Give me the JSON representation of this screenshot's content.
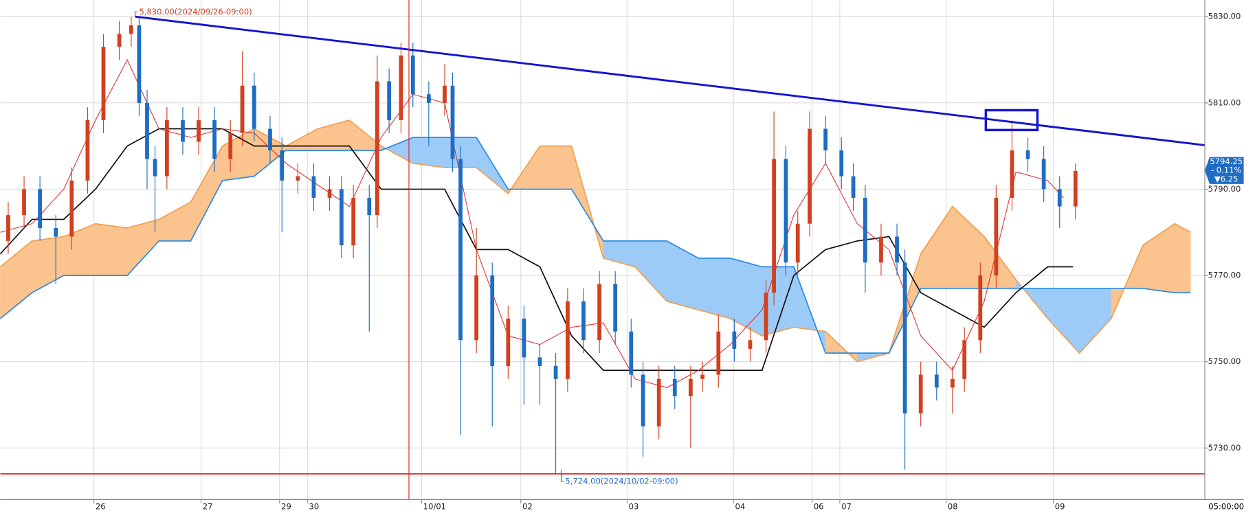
{
  "chart_data": {
    "type": "candlestick",
    "x": [
      0.5,
      1.5,
      2.5,
      3.5,
      4.5,
      5.5,
      6.5,
      7.5,
      8.25,
      8.75,
      9.25,
      9.75,
      10.5,
      11.5,
      12.5,
      13.5,
      14.5,
      15.25,
      16,
      17,
      17.75,
      18.75,
      19.75,
      20.75,
      21.5,
      22.25,
      23.25,
      23.75,
      24.5,
      25.25,
      26,
      27,
      28,
      28.5,
      29,
      30,
      31,
      32,
      33,
      34,
      35,
      35.75,
      36.75,
      37.75,
      38.75,
      39.75,
      40.5,
      41.5,
      42.5,
      43.5,
      44.25,
      45.25,
      46.25,
      47.25,
      48.25,
      48.75,
      49.5,
      50.25,
      51,
      52,
      53,
      53.75,
      54.5,
      55.5,
      56.5,
      57,
      58,
      59,
      60,
      60.75,
      61.75,
      62.75,
      63.75,
      64.75,
      65.75,
      66.75,
      67.75
    ],
    "open": [
      5778,
      5784,
      5790,
      5781,
      5779,
      5792,
      5806,
      5823,
      5826,
      5828,
      5810,
      5797,
      5793,
      5806,
      5801,
      5806,
      5797,
      5803,
      5814,
      5804,
      5799,
      5792,
      5793,
      5788,
      5790,
      5777,
      5788,
      5784,
      5815,
      5806,
      5821,
      5812,
      5810,
      5814,
      5797,
      5755,
      5770,
      5749,
      5760,
      5751,
      5749,
      5746,
      5764,
      5755,
      5768,
      5757,
      5747,
      5735,
      5746,
      5742,
      5746,
      5747,
      5757,
      5753,
      5755,
      5766,
      5797,
      5773,
      5782,
      5804,
      5799,
      5793,
      5788,
      5773,
      5779,
      5773,
      5738,
      5747,
      5744,
      5746,
      5755,
      5770,
      5788,
      5799,
      5797,
      5790,
      5786
    ],
    "high": [
      5787,
      5793,
      5793,
      5784,
      5795,
      5809,
      5826,
      5829,
      5830,
      5830,
      5813,
      5800,
      5809,
      5809,
      5809,
      5809,
      5806,
      5822,
      5817,
      5807,
      5802,
      5796,
      5796,
      5793,
      5793,
      5791,
      5791,
      5821,
      5818,
      5824,
      5824,
      5815,
      5819,
      5817,
      5800,
      5781,
      5773,
      5763,
      5763,
      5754,
      5752,
      5767,
      5767,
      5771,
      5771,
      5760,
      5750,
      5749,
      5749,
      5749,
      5750,
      5761,
      5760,
      5758,
      5769,
      5808,
      5800,
      5785,
      5808,
      5807,
      5802,
      5796,
      5791,
      5782,
      5782,
      5776,
      5750,
      5750,
      5749,
      5758,
      5773,
      5791,
      5806,
      5802,
      5800,
      5793,
      5796
    ],
    "low": [
      5775,
      5781,
      5778,
      5768,
      5776,
      5789,
      5803,
      5820,
      5823,
      5807,
      5790,
      5780,
      5790,
      5798,
      5798,
      5794,
      5794,
      5800,
      5801,
      5796,
      5780,
      5789,
      5785,
      5785,
      5774,
      5774,
      5757,
      5781,
      5803,
      5803,
      5809,
      5800,
      5807,
      5794,
      5733,
      5752,
      5735,
      5746,
      5740,
      5740,
      5724,
      5743,
      5752,
      5752,
      5754,
      5744,
      5728,
      5732,
      5739,
      5730,
      5743,
      5744,
      5750,
      5750,
      5752,
      5763,
      5770,
      5770,
      5779,
      5796,
      5790,
      5785,
      5766,
      5770,
      5770,
      5725,
      5735,
      5741,
      5738,
      5743,
      5752,
      5767,
      5785,
      5794,
      5787,
      5781,
      5783
    ],
    "close": [
      5784,
      5790,
      5781,
      5779,
      5792,
      5806,
      5823,
      5826,
      5828,
      5810,
      5797,
      5793,
      5806,
      5801,
      5806,
      5797,
      5803,
      5814,
      5804,
      5799,
      5792,
      5793,
      5788,
      5790,
      5777,
      5788,
      5784,
      5815,
      5806,
      5821,
      5812,
      5810,
      5814,
      5797,
      5755,
      5770,
      5749,
      5760,
      5751,
      5749,
      5746,
      5764,
      5755,
      5768,
      5757,
      5747,
      5735,
      5746,
      5742,
      5746,
      5747,
      5757,
      5753,
      5755,
      5766,
      5797,
      5773,
      5782,
      5804,
      5799,
      5793,
      5788,
      5773,
      5779,
      5773,
      5738,
      5747,
      5744,
      5746,
      5755,
      5770,
      5788,
      5799,
      5797,
      5790,
      5786,
      5794.25
    ],
    "up_color": "#d2401f",
    "down_color": "#1e6dc4",
    "lines": [
      {
        "name": "Kijun",
        "color": "#111111",
        "x": [
          0,
          2,
          4,
          6,
          8,
          10,
          12,
          14,
          16,
          18,
          20,
          22,
          24,
          26,
          28,
          30,
          32,
          34,
          36,
          38,
          40,
          42,
          44,
          46,
          48,
          50,
          52,
          54,
          56,
          58,
          60,
          62,
          64,
          66,
          67.6
        ],
        "values": [
          5775,
          5783,
          5783,
          5790,
          5800,
          5804,
          5804,
          5804,
          5800,
          5800,
          5800,
          5800,
          5790,
          5790,
          5790,
          5776,
          5776,
          5772,
          5756,
          5748,
          5748,
          5748,
          5748,
          5748,
          5748,
          5770,
          5776,
          5778,
          5779,
          5766,
          5762,
          5758,
          5766,
          5772,
          5772
        ]
      },
      {
        "name": "Tenkan",
        "color": "#e02828",
        "x": [
          0,
          2,
          4,
          6,
          8,
          10,
          12,
          14,
          16,
          18,
          20,
          22,
          24,
          26,
          28,
          30,
          32,
          34,
          36,
          38,
          40,
          42,
          44,
          46,
          48,
          50,
          52,
          54,
          56,
          58,
          60,
          62,
          64,
          66,
          67
        ],
        "values": [
          5780,
          5782,
          5790,
          5806,
          5820,
          5804,
          5802,
          5804,
          5803,
          5796,
          5791,
          5786,
          5802,
          5812,
          5810,
          5776,
          5756,
          5754,
          5758,
          5759,
          5746,
          5744,
          5748,
          5754,
          5762,
          5784,
          5796,
          5782,
          5776,
          5756,
          5748,
          5764,
          5794,
          5792,
          5788
        ]
      }
    ],
    "cloud": {
      "x": [
        0,
        2,
        4,
        6,
        8,
        10,
        12,
        14,
        16,
        18,
        20,
        22,
        24,
        26,
        28,
        30,
        32,
        34,
        36,
        38,
        40,
        42,
        44,
        46,
        48,
        50,
        52,
        54,
        56,
        58,
        60,
        62,
        64,
        66,
        68,
        70,
        72,
        74,
        75
      ],
      "span_a": [
        5772,
        5778,
        5779,
        5782,
        5781,
        5783,
        5787,
        5800,
        5804,
        5800,
        5804,
        5806,
        5800,
        5796,
        5795,
        5795,
        5789,
        5800,
        5800,
        5774,
        5772,
        5764,
        5762,
        5760,
        5756,
        5758,
        5757,
        5750,
        5752,
        5775,
        5786,
        5779,
        5769,
        5760,
        5752,
        5760,
        5777,
        5782,
        5780
      ],
      "span_b": [
        5760,
        5766,
        5770,
        5770,
        5770,
        5778,
        5778,
        5792,
        5793,
        5799,
        5799,
        5799,
        5799,
        5802,
        5802,
        5802,
        5790,
        5790,
        5790,
        5778,
        5778,
        5778,
        5774,
        5774,
        5772,
        5772,
        5752,
        5752,
        5752,
        5767,
        5767,
        5767,
        5767,
        5767,
        5767,
        5767,
        5767,
        5766,
        5766
      ],
      "bull_color": "#fbc48e",
      "bear_color": "#9ccbf8",
      "a_color": "#f0a050",
      "b_color": "#2a8ae6"
    },
    "trendline": {
      "x": [
        8.5,
        75.9
      ],
      "values": [
        5830,
        5800.2
      ],
      "color": "#1414d2"
    },
    "support_line": {
      "value": 5724,
      "color": "#e02020"
    },
    "marker_x": 25.75,
    "xlim": [
      0,
      75.9
    ],
    "ylim": [
      5718.05,
      5833.86
    ],
    "yticks": [
      {
        "value": 5730,
        "label": "5730.00"
      },
      {
        "value": 5750,
        "label": "5750.00"
      },
      {
        "value": 5770,
        "label": "5770.00"
      },
      {
        "value": 5790,
        "label": "5790.00"
      },
      {
        "value": 5810,
        "label": "5810.00"
      },
      {
        "value": 5830,
        "label": "5830.00"
      }
    ],
    "xticks": [
      {
        "value": 5.9,
        "label": "26"
      },
      {
        "value": 12.65,
        "label": "27"
      },
      {
        "value": 17.6,
        "label": "29"
      },
      {
        "value": 19.35,
        "label": "30"
      },
      {
        "value": 26.55,
        "label": "10/01"
      },
      {
        "value": 32.8,
        "label": "02"
      },
      {
        "value": 39.5,
        "label": "03"
      },
      {
        "value": 46.2,
        "label": "04"
      },
      {
        "value": 51.15,
        "label": "06"
      },
      {
        "value": 52.9,
        "label": "07"
      },
      {
        "value": 59.6,
        "label": "08"
      },
      {
        "value": 66.35,
        "label": "09"
      }
    ],
    "time_label": "05:00:00",
    "annotations": [
      "5,830.00(2024/09/26-09:00)",
      "5,724.00(2024/10/02-09:00)"
    ],
    "price_tag": {
      "price": "5794.25",
      "change_pct": "- 0.11%",
      "change": "▼6.25"
    },
    "grid": true
  }
}
